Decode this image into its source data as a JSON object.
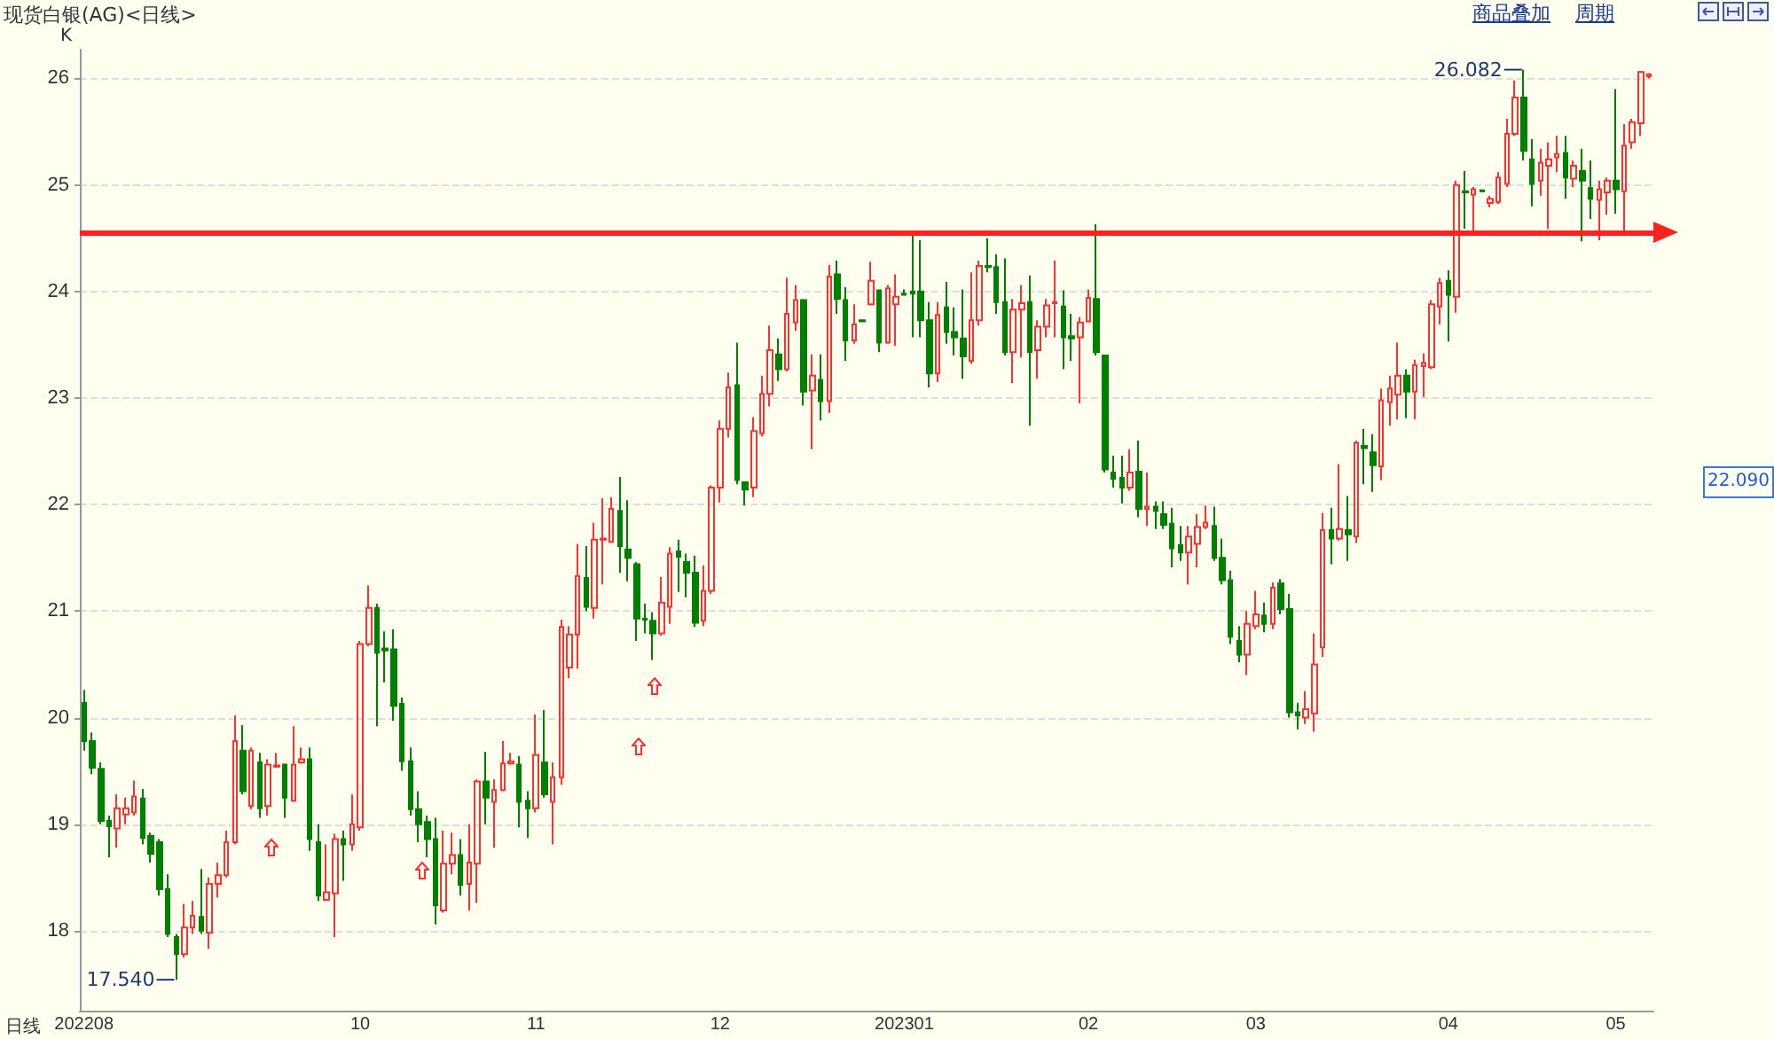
{
  "chart_data": {
    "type": "candlestick",
    "title": "现货白银(AG)<日线>",
    "xlabel": "日线",
    "ylabel": "K",
    "categories": [
      "202208",
      null,
      null,
      null,
      null,
      null,
      null,
      null,
      null,
      null,
      null,
      null,
      null,
      null,
      null,
      null,
      null,
      null,
      null,
      null,
      null,
      null,
      null,
      null,
      null,
      null,
      null,
      null,
      null,
      null,
      null,
      null,
      null,
      "10",
      null,
      null,
      null,
      null,
      null,
      null,
      null,
      null,
      null,
      null,
      null,
      null,
      null,
      null,
      null,
      null,
      null,
      null,
      null,
      null,
      "11",
      null,
      null,
      null,
      null,
      null,
      null,
      null,
      null,
      null,
      null,
      null,
      null,
      null,
      null,
      null,
      null,
      null,
      null,
      null,
      null,
      null,
      "12",
      null,
      null,
      null,
      null,
      null,
      null,
      null,
      null,
      null,
      null,
      null,
      null,
      null,
      null,
      null,
      null,
      null,
      null,
      null,
      null,
      null,
      "202301",
      null,
      null,
      null,
      null,
      null,
      null,
      null,
      null,
      null,
      null,
      null,
      null,
      null,
      null,
      null,
      null,
      null,
      null,
      null,
      null,
      null,
      "02",
      null,
      null,
      null,
      null,
      null,
      null,
      null,
      null,
      null,
      null,
      null,
      null,
      null,
      null,
      null,
      null,
      null,
      null,
      null,
      "03",
      null,
      null,
      null,
      null,
      null,
      null,
      null,
      null,
      null,
      null,
      null,
      null,
      null,
      null,
      null,
      null,
      null,
      null,
      null,
      null,
      null,
      null,
      "04",
      null,
      null,
      null,
      null,
      null,
      null,
      null,
      null,
      null,
      null,
      null,
      null,
      null,
      null,
      null,
      null,
      null,
      null,
      null,
      "05",
      null,
      null,
      null,
      null
    ],
    "ohlc": [
      [
        20.14,
        20.26,
        19.69,
        19.78
      ],
      [
        19.78,
        19.86,
        19.47,
        19.53
      ],
      [
        19.52,
        19.58,
        19.0,
        19.03
      ],
      [
        19.03,
        19.08,
        18.69,
        18.98
      ],
      [
        18.96,
        19.28,
        18.78,
        19.15
      ],
      [
        19.09,
        19.25,
        19.0,
        19.15
      ],
      [
        19.11,
        19.41,
        19.08,
        19.26
      ],
      [
        19.24,
        19.33,
        18.81,
        18.87
      ],
      [
        18.89,
        18.92,
        18.64,
        18.72
      ],
      [
        18.83,
        18.86,
        18.33,
        18.39
      ],
      [
        18.39,
        18.53,
        17.94,
        17.97
      ],
      [
        17.94,
        17.97,
        17.54,
        17.78
      ],
      [
        17.78,
        18.25,
        17.75,
        18.03
      ],
      [
        18.03,
        18.28,
        17.97,
        18.14
      ],
      [
        18.13,
        18.58,
        17.97,
        18.0
      ],
      [
        17.98,
        18.5,
        17.83,
        18.44
      ],
      [
        18.44,
        18.64,
        18.31,
        18.52
      ],
      [
        18.52,
        18.94,
        18.5,
        18.83
      ],
      [
        18.83,
        20.02,
        18.81,
        19.78
      ],
      [
        19.69,
        19.93,
        19.28,
        19.31
      ],
      [
        19.17,
        19.72,
        19.14,
        19.69
      ],
      [
        19.58,
        19.67,
        19.06,
        19.15
      ],
      [
        19.17,
        19.61,
        19.08,
        19.56
      ],
      [
        19.54,
        19.67,
        19.53,
        19.55
      ],
      [
        19.56,
        19.57,
        19.06,
        19.25
      ],
      [
        19.22,
        19.92,
        19.21,
        19.56
      ],
      [
        19.58,
        19.72,
        19.57,
        19.61
      ],
      [
        19.61,
        19.72,
        18.75,
        18.86
      ],
      [
        18.83,
        19.0,
        18.28,
        18.33
      ],
      [
        18.29,
        18.81,
        18.28,
        18.36
      ],
      [
        18.35,
        18.91,
        17.94,
        18.86
      ],
      [
        18.86,
        18.94,
        18.47,
        18.81
      ],
      [
        18.81,
        19.28,
        18.75,
        19.0
      ],
      [
        18.97,
        20.72,
        18.94,
        20.69
      ],
      [
        20.69,
        21.24,
        20.67,
        21.03
      ],
      [
        21.03,
        21.07,
        19.92,
        20.61
      ],
      [
        20.65,
        20.81,
        20.33,
        20.63
      ],
      [
        20.64,
        20.83,
        19.97,
        20.11
      ],
      [
        20.13,
        20.19,
        19.5,
        19.59
      ],
      [
        19.59,
        19.72,
        19.08,
        19.14
      ],
      [
        19.14,
        19.31,
        18.83,
        19.0
      ],
      [
        19.02,
        19.08,
        18.69,
        18.86
      ],
      [
        18.86,
        19.06,
        18.06,
        18.24
      ],
      [
        18.19,
        18.94,
        18.17,
        18.63
      ],
      [
        18.63,
        18.92,
        18.53,
        18.71
      ],
      [
        18.71,
        18.86,
        18.33,
        18.43
      ],
      [
        18.44,
        19.0,
        18.19,
        18.64
      ],
      [
        18.63,
        19.42,
        18.26,
        19.4
      ],
      [
        19.4,
        19.68,
        19.0,
        19.25
      ],
      [
        19.21,
        19.42,
        18.78,
        19.32
      ],
      [
        19.32,
        19.78,
        19.31,
        19.57
      ],
      [
        19.57,
        19.67,
        19.56,
        19.59
      ],
      [
        19.56,
        19.64,
        18.97,
        19.21
      ],
      [
        19.22,
        19.31,
        18.87,
        19.15
      ],
      [
        19.15,
        20.03,
        19.11,
        19.65
      ],
      [
        19.58,
        20.07,
        19.25,
        19.28
      ],
      [
        19.21,
        19.58,
        18.81,
        19.44
      ],
      [
        19.44,
        20.92,
        19.37,
        20.85
      ],
      [
        20.47,
        20.86,
        20.37,
        20.78
      ],
      [
        20.78,
        21.63,
        20.46,
        21.33
      ],
      [
        21.31,
        21.61,
        21.0,
        21.04
      ],
      [
        21.03,
        21.83,
        20.93,
        21.67
      ],
      [
        21.67,
        22.06,
        21.25,
        21.68
      ],
      [
        21.65,
        22.07,
        21.64,
        21.96
      ],
      [
        21.94,
        22.26,
        21.36,
        21.61
      ],
      [
        21.58,
        22.04,
        21.28,
        21.5
      ],
      [
        21.44,
        21.46,
        20.72,
        20.93
      ],
      [
        20.93,
        21.07,
        20.79,
        20.92
      ],
      [
        20.91,
        20.99,
        20.54,
        20.79
      ],
      [
        20.79,
        21.32,
        20.77,
        21.08
      ],
      [
        21.04,
        21.6,
        20.88,
        21.54
      ],
      [
        21.56,
        21.67,
        21.18,
        21.51
      ],
      [
        21.46,
        21.54,
        21.13,
        21.36
      ],
      [
        21.36,
        21.52,
        20.85,
        20.89
      ],
      [
        20.91,
        21.43,
        20.86,
        21.19
      ],
      [
        21.19,
        22.18,
        21.16,
        22.16
      ],
      [
        22.16,
        22.79,
        22.02,
        22.71
      ],
      [
        22.71,
        23.24,
        22.63,
        23.1
      ],
      [
        23.12,
        23.52,
        22.19,
        22.23
      ],
      [
        22.21,
        22.21,
        21.99,
        22.14
      ],
      [
        22.16,
        22.82,
        22.07,
        22.69
      ],
      [
        22.67,
        23.21,
        22.64,
        23.04
      ],
      [
        23.04,
        23.68,
        22.92,
        23.45
      ],
      [
        23.41,
        23.56,
        23.16,
        23.27
      ],
      [
        23.27,
        24.13,
        23.25,
        23.79
      ],
      [
        23.71,
        24.06,
        23.63,
        23.92
      ],
      [
        23.92,
        23.93,
        22.93,
        23.06
      ],
      [
        23.07,
        23.41,
        22.52,
        23.21
      ],
      [
        23.17,
        23.41,
        22.79,
        22.97
      ],
      [
        22.97,
        24.25,
        22.86,
        24.14
      ],
      [
        24.16,
        24.29,
        23.79,
        23.93
      ],
      [
        23.92,
        24.04,
        23.35,
        23.54
      ],
      [
        23.54,
        23.88,
        23.51,
        23.69
      ],
      [
        23.73,
        23.73,
        23.72,
        23.72
      ],
      [
        23.88,
        24.28,
        23.88,
        24.1
      ],
      [
        24.01,
        24.02,
        23.43,
        23.52
      ],
      [
        23.52,
        24.06,
        23.51,
        24.03
      ],
      [
        23.88,
        24.16,
        23.49,
        23.95
      ],
      [
        23.98,
        24.02,
        23.97,
        23.97
      ],
      [
        24.0,
        24.54,
        23.57,
        23.98
      ],
      [
        24.0,
        24.48,
        23.57,
        23.73
      ],
      [
        23.73,
        23.9,
        23.1,
        23.23
      ],
      [
        23.23,
        23.9,
        23.15,
        23.78
      ],
      [
        23.85,
        24.09,
        23.51,
        23.62
      ],
      [
        23.62,
        23.85,
        23.4,
        23.57
      ],
      [
        23.56,
        24.02,
        23.18,
        23.39
      ],
      [
        23.35,
        24.18,
        23.32,
        23.73
      ],
      [
        23.73,
        24.29,
        23.68,
        24.24
      ],
      [
        24.24,
        24.5,
        24.18,
        24.23
      ],
      [
        24.23,
        24.35,
        23.79,
        23.9
      ],
      [
        23.9,
        24.31,
        23.4,
        23.43
      ],
      [
        23.43,
        23.93,
        23.14,
        23.83
      ],
      [
        23.83,
        24.06,
        23.38,
        23.89
      ],
      [
        23.9,
        24.15,
        22.74,
        23.43
      ],
      [
        23.45,
        23.73,
        23.18,
        23.67
      ],
      [
        23.67,
        23.93,
        23.57,
        23.87
      ],
      [
        23.89,
        24.29,
        23.57,
        23.9
      ],
      [
        23.86,
        24.01,
        23.27,
        23.57
      ],
      [
        23.58,
        23.79,
        23.35,
        23.56
      ],
      [
        23.57,
        23.76,
        22.95,
        23.71
      ],
      [
        23.72,
        24.02,
        23.71,
        23.94
      ],
      [
        23.93,
        24.63,
        23.4,
        23.43
      ],
      [
        23.4,
        23.4,
        22.3,
        22.33
      ],
      [
        22.3,
        22.46,
        22.16,
        22.24
      ],
      [
        22.25,
        22.46,
        22.01,
        22.16
      ],
      [
        22.16,
        22.52,
        22.13,
        22.3
      ],
      [
        22.31,
        22.6,
        21.88,
        21.96
      ],
      [
        21.96,
        22.3,
        21.8,
        21.98
      ],
      [
        21.98,
        22.03,
        21.77,
        21.94
      ],
      [
        21.91,
        22.03,
        21.77,
        21.81
      ],
      [
        21.82,
        21.97,
        21.41,
        21.59
      ],
      [
        21.62,
        21.8,
        21.47,
        21.55
      ],
      [
        21.55,
        21.8,
        21.25,
        21.7
      ],
      [
        21.63,
        21.91,
        21.41,
        21.79
      ],
      [
        21.79,
        21.99,
        21.77,
        21.83
      ],
      [
        21.8,
        21.98,
        21.47,
        21.5
      ],
      [
        21.5,
        21.68,
        21.25,
        21.29
      ],
      [
        21.29,
        21.38,
        20.69,
        20.76
      ],
      [
        20.72,
        20.86,
        20.52,
        20.59
      ],
      [
        20.59,
        21.0,
        20.4,
        20.88
      ],
      [
        20.86,
        21.19,
        20.83,
        20.97
      ],
      [
        20.96,
        21.08,
        20.8,
        20.88
      ],
      [
        20.88,
        21.27,
        20.83,
        21.22
      ],
      [
        21.26,
        21.3,
        20.97,
        21.02
      ],
      [
        21.02,
        21.16,
        20.0,
        20.05
      ],
      [
        20.05,
        20.14,
        19.89,
        20.02
      ],
      [
        20.0,
        20.25,
        19.94,
        20.08
      ],
      [
        20.04,
        20.79,
        19.87,
        20.5
      ],
      [
        20.66,
        21.92,
        20.57,
        21.76
      ],
      [
        21.76,
        21.97,
        21.44,
        21.68
      ],
      [
        21.68,
        22.38,
        21.66,
        21.77
      ],
      [
        21.76,
        22.08,
        21.47,
        21.72
      ],
      [
        21.7,
        22.6,
        21.64,
        22.58
      ],
      [
        22.55,
        22.71,
        22.19,
        22.53
      ],
      [
        22.49,
        22.66,
        22.12,
        22.37
      ],
      [
        22.36,
        23.09,
        22.23,
        22.98
      ],
      [
        22.96,
        23.21,
        22.74,
        23.09
      ],
      [
        23.03,
        23.52,
        22.8,
        23.21
      ],
      [
        23.21,
        23.27,
        22.81,
        23.06
      ],
      [
        23.06,
        23.36,
        22.8,
        23.31
      ],
      [
        23.3,
        23.42,
        23.01,
        23.33
      ],
      [
        23.29,
        23.92,
        23.27,
        23.88
      ],
      [
        23.86,
        24.13,
        23.69,
        24.08
      ],
      [
        24.1,
        24.2,
        23.53,
        23.97
      ],
      [
        23.95,
        25.04,
        23.8,
        25.0
      ],
      [
        24.94,
        25.13,
        24.59,
        24.93
      ],
      [
        24.91,
        24.98,
        24.57,
        24.96
      ],
      [
        24.95,
        24.95,
        24.94,
        24.94
      ],
      [
        24.83,
        24.9,
        24.79,
        24.87
      ],
      [
        24.84,
        25.12,
        24.82,
        25.07
      ],
      [
        25.01,
        25.62,
        24.98,
        25.48
      ],
      [
        25.48,
        25.98,
        25.46,
        25.82
      ],
      [
        25.82,
        26.082,
        25.23,
        25.32
      ],
      [
        25.24,
        25.43,
        24.8,
        25.01
      ],
      [
        25.04,
        25.34,
        24.9,
        25.21
      ],
      [
        25.18,
        25.4,
        24.59,
        25.24
      ],
      [
        25.26,
        25.46,
        25.12,
        25.29
      ],
      [
        25.3,
        25.46,
        24.87,
        25.07
      ],
      [
        25.06,
        25.23,
        24.98,
        25.18
      ],
      [
        25.13,
        25.34,
        24.47,
        25.04
      ],
      [
        24.97,
        25.23,
        24.68,
        24.87
      ],
      [
        24.86,
        25.04,
        24.48,
        24.96
      ],
      [
        24.93,
        25.07,
        24.72,
        25.04
      ],
      [
        25.04,
        25.9,
        24.73,
        24.96
      ],
      [
        24.94,
        25.57,
        24.54,
        25.37
      ],
      [
        25.4,
        25.62,
        25.34,
        25.59
      ],
      [
        25.58,
        26.07,
        25.46,
        26.06
      ],
      [
        26.02,
        26.05,
        26.0,
        26.04
      ]
    ],
    "colors": [
      "#008000",
      "#008000",
      "#008000",
      "#008000",
      "#ff3030",
      "#ff3030",
      "#ff3030",
      "#008000",
      "#008000",
      "#008000",
      "#008000",
      "#008000",
      "#ff3030",
      "#ff3030",
      "#008000",
      "#ff3030",
      "#ff3030",
      "#ff3030",
      "#ff3030",
      "#008000",
      "#ff3030",
      "#008000",
      "#ff3030",
      "#ff3030",
      "#008000",
      "#ff3030",
      "#ff3030",
      "#008000",
      "#008000",
      "#ff3030",
      "#ff3030",
      "#008000",
      "#ff3030",
      "#ff3030",
      "#ff3030",
      "#008000",
      "#008000",
      "#008000",
      "#008000",
      "#008000",
      "#008000",
      "#008000",
      "#008000",
      "#ff3030",
      "#ff3030",
      "#008000",
      "#ff3030",
      "#ff3030",
      "#008000",
      "#ff3030",
      "#ff3030",
      "#ff3030",
      "#008000",
      "#008000",
      "#ff3030",
      "#008000",
      "#ff3030",
      "#ff3030",
      "#ff3030",
      "#ff3030",
      "#008000",
      "#ff3030",
      "#ff3030",
      "#ff3030",
      "#008000",
      "#008000",
      "#008000",
      "#008000",
      "#008000",
      "#ff3030",
      "#ff3030",
      "#008000",
      "#008000",
      "#008000",
      "#ff3030",
      "#ff3030",
      "#ff3030",
      "#ff3030",
      "#008000",
      "#008000",
      "#ff3030",
      "#ff3030",
      "#ff3030",
      "#008000",
      "#ff3030",
      "#ff3030",
      "#008000",
      "#ff3030",
      "#008000",
      "#ff3030",
      "#008000",
      "#008000",
      "#ff3030",
      "#008000",
      "#ff3030",
      "#008000",
      "#ff3030",
      "#ff3030",
      "#008000",
      "#008000",
      "#008000",
      "#008000",
      "#ff3030",
      "#008000",
      "#008000",
      "#008000",
      "#ff3030",
      "#ff3030",
      "#008000",
      "#008000",
      "#008000",
      "#ff3030",
      "#ff3030",
      "#008000",
      "#ff3030",
      "#ff3030",
      "#ff3030",
      "#008000",
      "#008000",
      "#ff3030",
      "#ff3030",
      "#008000",
      "#008000",
      "#008000",
      "#008000",
      "#ff3030",
      "#008000",
      "#ff3030",
      "#008000",
      "#008000",
      "#008000",
      "#008000",
      "#ff3030",
      "#ff3030",
      "#ff3030",
      "#008000",
      "#008000",
      "#008000",
      "#008000",
      "#ff3030",
      "#ff3030",
      "#008000",
      "#ff3030",
      "#008000",
      "#008000",
      "#008000",
      "#ff3030",
      "#ff3030",
      "#ff3030",
      "#008000",
      "#ff3030",
      "#008000",
      "#ff3030",
      "#008000",
      "#008000",
      "#ff3030",
      "#ff3030",
      "#ff3030",
      "#008000",
      "#ff3030",
      "#ff3030",
      "#ff3030",
      "#ff3030",
      "#008000",
      "#ff3030",
      "#008000",
      "#ff3030",
      "#008000",
      "#ff3030",
      "#ff3030",
      "#ff3030",
      "#ff3030",
      "#008000",
      "#008000",
      "#ff3030",
      "#ff3030",
      "#ff3030",
      "#008000",
      "#ff3030",
      "#008000",
      "#008000",
      "#ff3030",
      "#ff3030",
      "#008000",
      "#ff3030",
      "#ff3030",
      "#ff3030",
      "#ff3030"
    ],
    "ylim": [
      17.25,
      26.27
    ],
    "yticks": [
      18,
      19,
      20,
      21,
      22,
      23,
      24,
      25,
      26
    ],
    "grid": "y",
    "ref_lines": [
      {
        "axis": "y",
        "value": 24.55,
        "color": "#ff2020"
      }
    ],
    "annotations": [
      "17.540",
      "26.082",
      "22.090",
      "商品叠加",
      "周期"
    ]
  }
}
